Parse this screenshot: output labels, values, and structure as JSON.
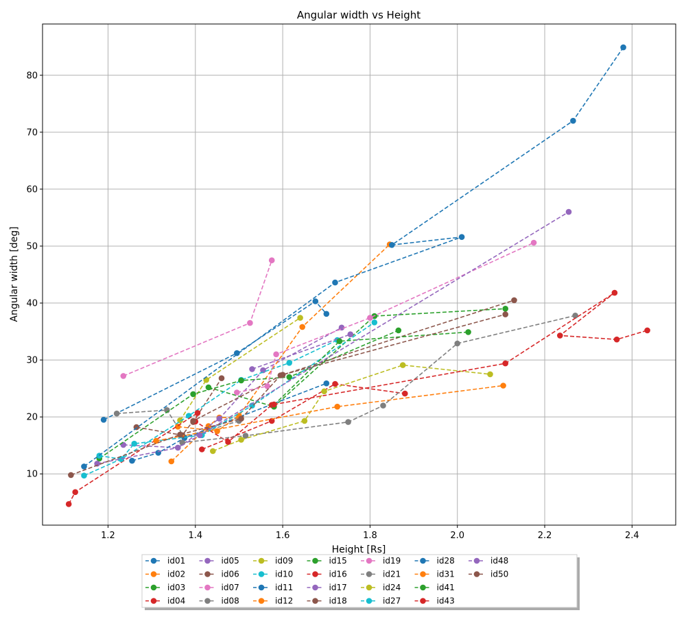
{
  "chart_data": {
    "type": "line",
    "title": "Angular width vs Height",
    "xlabel": "Height [Rs]",
    "ylabel": "Angular width [deg]",
    "xlim": [
      1.05,
      2.5
    ],
    "ylim": [
      1,
      89
    ],
    "xticks": [
      "1.2",
      "1.4",
      "1.6",
      "1.8",
      "2.0",
      "2.2",
      "2.4"
    ],
    "yticks": [
      "10",
      "20",
      "30",
      "40",
      "50",
      "60",
      "70",
      "80"
    ],
    "grid": true,
    "legend_position": "bottom",
    "series": [
      {
        "name": "id01",
        "color": "#1f77b4",
        "points": [
          [
            1.19,
            19.5
          ],
          [
            1.495,
            31.2
          ],
          [
            1.675,
            40.3
          ],
          [
            1.7,
            38.1
          ]
        ]
      },
      {
        "name": "id02",
        "color": "#ff7f0e",
        "points": [
          [
            1.345,
            12.2
          ],
          [
            1.43,
            18.4
          ],
          [
            1.455,
            19.9
          ],
          [
            1.5,
            19.8
          ]
        ]
      },
      {
        "name": "id03",
        "color": "#2ca02c",
        "points": [
          [
            1.43,
            25.2
          ],
          [
            1.58,
            21.8
          ],
          [
            1.81,
            37.7
          ],
          [
            2.11,
            39.0
          ]
        ]
      },
      {
        "name": "id04",
        "color": "#d62728",
        "points": [
          [
            1.415,
            14.3
          ],
          [
            1.575,
            19.3
          ],
          [
            1.72,
            25.8
          ],
          [
            1.88,
            24.1
          ]
        ]
      },
      {
        "name": "id05",
        "color": "#9467bd",
        "points": [
          [
            1.235,
            15.1
          ],
          [
            1.36,
            14.6
          ],
          [
            1.455,
            19.7
          ],
          [
            1.555,
            28.2
          ],
          [
            1.735,
            35.7
          ]
        ]
      },
      {
        "name": "id06",
        "color": "#8c564b",
        "points": [
          [
            1.395,
            19.1
          ],
          [
            1.46,
            26.8
          ]
        ]
      },
      {
        "name": "id07",
        "color": "#e377c2",
        "points": [
          [
            1.235,
            27.2
          ],
          [
            1.525,
            36.5
          ],
          [
            1.575,
            47.5
          ]
        ]
      },
      {
        "name": "id08",
        "color": "#7f7f7f",
        "points": [
          [
            1.22,
            20.6
          ],
          [
            1.335,
            21.2
          ],
          [
            1.375,
            16.4
          ],
          [
            1.5,
            19.3
          ]
        ]
      },
      {
        "name": "id09",
        "color": "#bcbd22",
        "points": [
          [
            1.365,
            19.4
          ],
          [
            1.425,
            26.5
          ],
          [
            1.64,
            37.4
          ]
        ]
      },
      {
        "name": "id10",
        "color": "#17becf",
        "points": [
          [
            1.145,
            9.7
          ],
          [
            1.23,
            12.6
          ],
          [
            1.385,
            20.2
          ],
          [
            1.505,
            26.5
          ],
          [
            1.615,
            29.5
          ],
          [
            1.725,
            33.5
          ]
        ]
      },
      {
        "name": "id11",
        "color": "#1f77b4",
        "points": [
          [
            1.255,
            12.3
          ],
          [
            1.315,
            13.7
          ],
          [
            1.375,
            16.3
          ],
          [
            1.7,
            25.9
          ]
        ]
      },
      {
        "name": "id12",
        "color": "#ff7f0e",
        "points": [
          [
            1.36,
            18.3
          ],
          [
            1.45,
            17.5
          ],
          [
            1.5,
            20.2
          ],
          [
            1.645,
            35.8
          ],
          [
            1.845,
            50.3
          ]
        ]
      },
      {
        "name": "id15",
        "color": "#2ca02c",
        "points": [
          [
            1.18,
            12.7
          ],
          [
            1.395,
            24.0
          ],
          [
            1.505,
            26.4
          ],
          [
            1.615,
            27.0
          ],
          [
            1.865,
            35.2
          ]
        ]
      },
      {
        "name": "id16",
        "color": "#d62728",
        "points": [
          [
            1.11,
            4.7
          ],
          [
            1.125,
            6.8
          ],
          [
            1.405,
            20.7
          ],
          [
            1.4,
            19.2
          ],
          [
            1.475,
            15.6
          ],
          [
            1.575,
            22.1
          ]
        ]
      },
      {
        "name": "id17",
        "color": "#9467bd",
        "points": [
          [
            1.53,
            28.4
          ],
          [
            1.755,
            34.5
          ]
        ]
      },
      {
        "name": "id18",
        "color": "#8c564b",
        "points": [
          [
            1.265,
            18.2
          ],
          [
            1.37,
            16.8
          ],
          [
            1.395,
            19.3
          ],
          [
            1.6,
            27.4
          ],
          [
            2.13,
            40.5
          ]
        ]
      },
      {
        "name": "id19",
        "color": "#e377c2",
        "points": [
          [
            1.495,
            24.3
          ],
          [
            1.565,
            25.4
          ],
          [
            1.585,
            31.0
          ],
          [
            1.8,
            37.4
          ],
          [
            2.175,
            50.6
          ]
        ]
      },
      {
        "name": "id21",
        "color": "#7f7f7f",
        "points": [
          [
            1.37,
            15.5
          ],
          [
            1.515,
            16.7
          ],
          [
            1.75,
            19.1
          ],
          [
            1.83,
            22.0
          ],
          [
            2.0,
            32.9
          ],
          [
            2.27,
            37.8
          ]
        ]
      },
      {
        "name": "id24",
        "color": "#bcbd22",
        "points": [
          [
            1.44,
            14.0
          ],
          [
            1.505,
            16.0
          ],
          [
            1.65,
            19.3
          ],
          [
            1.695,
            24.5
          ],
          [
            1.875,
            29.1
          ],
          [
            2.075,
            27.5
          ]
        ]
      },
      {
        "name": "id27",
        "color": "#17becf",
        "points": [
          [
            1.18,
            13.2
          ],
          [
            1.23,
            12.6
          ],
          [
            1.26,
            15.3
          ],
          [
            1.415,
            16.8
          ],
          [
            1.53,
            22.0
          ],
          [
            1.81,
            36.6
          ]
        ]
      },
      {
        "name": "id28",
        "color": "#1f77b4",
        "points": [
          [
            1.145,
            11.3
          ],
          [
            1.72,
            43.6
          ],
          [
            2.01,
            51.6
          ],
          [
            1.85,
            50.2
          ],
          [
            2.265,
            72.0
          ],
          [
            2.38,
            84.9
          ]
        ]
      },
      {
        "name": "id31",
        "color": "#ff7f0e",
        "points": [
          [
            1.31,
            15.8
          ],
          [
            1.725,
            21.8
          ],
          [
            2.105,
            25.5
          ]
        ]
      },
      {
        "name": "id41",
        "color": "#2ca02c",
        "points": [
          [
            1.58,
            22.1
          ],
          [
            1.73,
            33.3
          ],
          [
            2.025,
            34.9
          ]
        ]
      },
      {
        "name": "id43",
        "color": "#d62728",
        "points": [
          [
            1.58,
            22.2
          ],
          [
            2.11,
            29.4
          ],
          [
            2.36,
            41.8
          ],
          [
            2.235,
            34.3
          ],
          [
            2.365,
            33.6
          ],
          [
            2.435,
            35.2
          ]
        ]
      },
      {
        "name": "id48",
        "color": "#9467bd",
        "points": [
          [
            1.175,
            11.8
          ],
          [
            1.36,
            14.6
          ],
          [
            1.41,
            16.8
          ],
          [
            2.255,
            56.0
          ]
        ]
      },
      {
        "name": "id50",
        "color": "#8c564b",
        "points": [
          [
            1.115,
            9.8
          ],
          [
            1.365,
            16.9
          ],
          [
            1.505,
            19.7
          ],
          [
            1.595,
            27.3
          ],
          [
            2.11,
            38.0
          ]
        ]
      }
    ]
  }
}
